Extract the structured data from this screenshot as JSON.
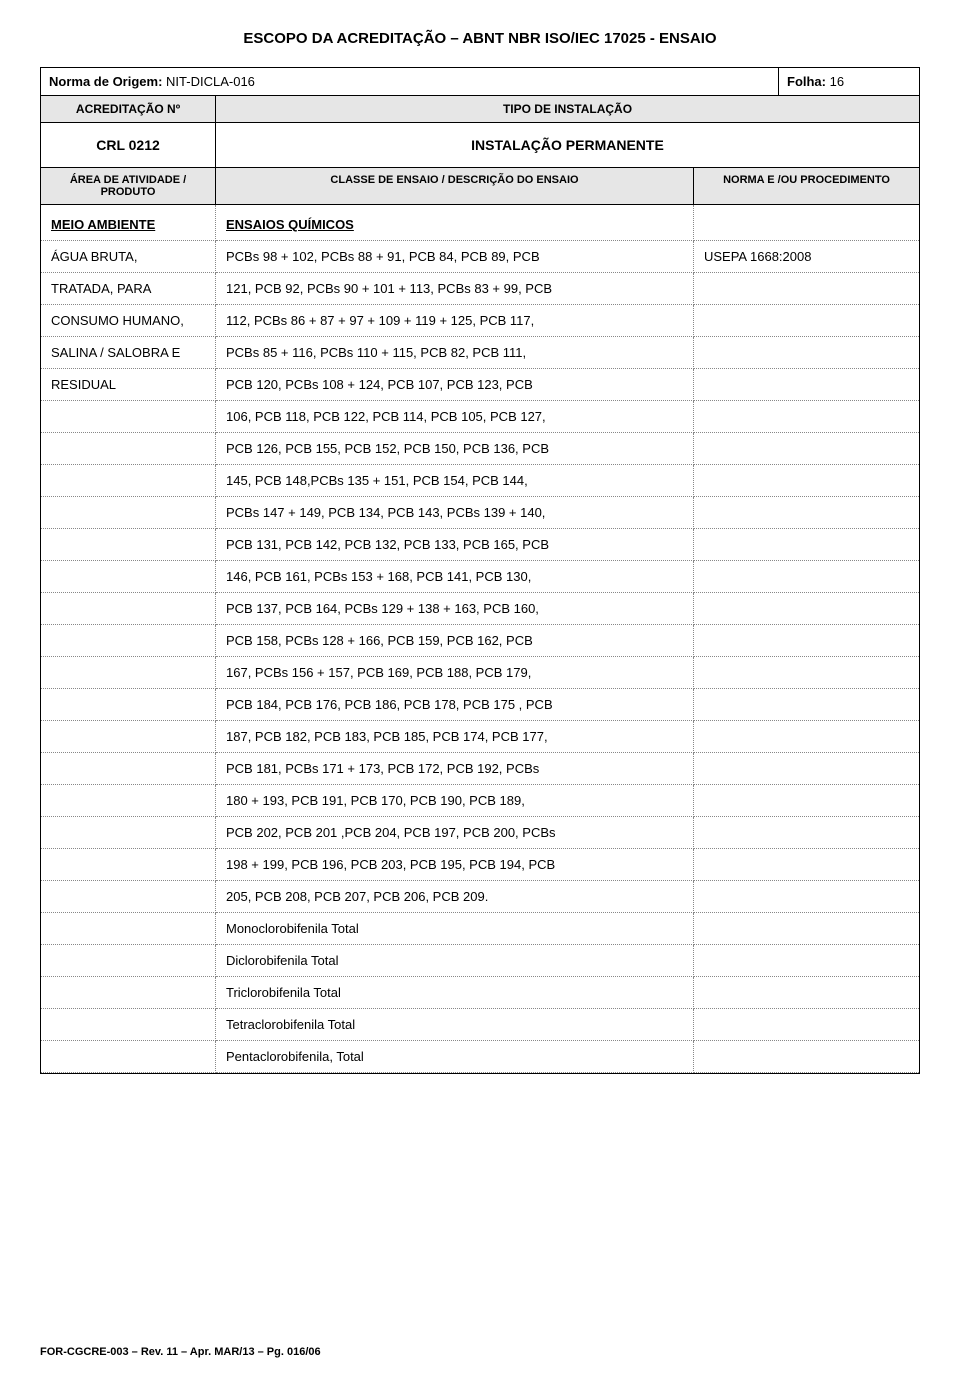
{
  "page_title": "ESCOPO DA ACREDITAÇÃO – ABNT NBR ISO/IEC 17025 - ENSAIO",
  "norma_label": "Norma de Origem:",
  "norma_value": "NIT-DICLA-016",
  "folha_label": "Folha:",
  "folha_value": "16",
  "header": {
    "acred_label": "ACREDITAÇÃO Nº",
    "tipo_label": "TIPO DE INSTALAÇÃO",
    "crl_value": "CRL 0212",
    "instalacao_value": "INSTALAÇÃO PERMANENTE",
    "area_label": "ÁREA DE ATIVIDADE / PRODUTO",
    "classe_label": "CLASSE DE ENSAIO / DESCRIÇÃO DO ENSAIO",
    "norma_proc_label": "NORMA E /OU PROCEDIMENTO"
  },
  "rows": [
    {
      "c1": "MEIO AMBIENTE",
      "c1_style": "bold-underline",
      "c2": "ENSAIOS QUÍMICOS",
      "c2_style": "bold-underline",
      "c3": ""
    },
    {
      "c1": "ÁGUA BRUTA,",
      "c2": "PCBs 98 + 102, PCBs 88 + 91, PCB 84, PCB 89, PCB",
      "c3": "USEPA 1668:2008"
    },
    {
      "c1": "TRATADA, PARA",
      "c2": "121, PCB 92, PCBs 90 + 101 + 113, PCBs 83 + 99, PCB",
      "c3": ""
    },
    {
      "c1": "CONSUMO HUMANO,",
      "c2": "112, PCBs 86 + 87 + 97 + 109 + 119 + 125, PCB 117,",
      "c3": ""
    },
    {
      "c1": "SALINA / SALOBRA E",
      "c2": "PCBs 85 + 116, PCBs 110 + 115, PCB 82, PCB 111,",
      "c3": ""
    },
    {
      "c1": "RESIDUAL",
      "c2": "PCB 120, PCBs 108 + 124, PCB 107, PCB 123, PCB",
      "c3": ""
    },
    {
      "c1": "",
      "c2": "106, PCB 118, PCB 122, PCB 114, PCB 105, PCB 127,",
      "c3": ""
    },
    {
      "c1": "",
      "c2": "PCB 126, PCB 155, PCB 152, PCB 150, PCB 136, PCB",
      "c3": ""
    },
    {
      "c1": "",
      "c2": "145, PCB 148,PCBs 135 + 151, PCB 154, PCB 144,",
      "c3": ""
    },
    {
      "c1": "",
      "c2": "PCBs 147 + 149, PCB 134, PCB 143, PCBs 139 + 140,",
      "c3": ""
    },
    {
      "c1": "",
      "c2": "PCB 131, PCB 142, PCB 132, PCB 133, PCB 165, PCB",
      "c3": ""
    },
    {
      "c1": "",
      "c2": "146, PCB 161, PCBs 153 + 168, PCB 141, PCB 130,",
      "c3": ""
    },
    {
      "c1": "",
      "c2": "PCB 137, PCB 164, PCBs 129 + 138 + 163, PCB 160,",
      "c3": ""
    },
    {
      "c1": "",
      "c2": "PCB 158, PCBs 128 + 166, PCB 159, PCB 162, PCB",
      "c3": ""
    },
    {
      "c1": "",
      "c2": "167, PCBs 156 + 157, PCB 169, PCB 188, PCB 179,",
      "c3": ""
    },
    {
      "c1": "",
      "c2": "PCB 184, PCB 176, PCB 186, PCB 178, PCB 175 , PCB",
      "c3": ""
    },
    {
      "c1": "",
      "c2": "187, PCB 182, PCB 183, PCB 185, PCB 174, PCB 177,",
      "c3": ""
    },
    {
      "c1": "",
      "c2": "PCB 181, PCBs 171 + 173, PCB 172, PCB 192, PCBs",
      "c3": ""
    },
    {
      "c1": "",
      "c2": "180 + 193, PCB 191, PCB 170, PCB 190, PCB 189,",
      "c3": ""
    },
    {
      "c1": "",
      "c2": "PCB 202, PCB 201 ,PCB 204, PCB 197, PCB 200, PCBs",
      "c3": ""
    },
    {
      "c1": "",
      "c2": "198 + 199, PCB 196, PCB 203, PCB 195, PCB 194, PCB",
      "c3": ""
    },
    {
      "c1": "",
      "c2": "205, PCB 208, PCB 207, PCB 206, PCB 209.",
      "c3": ""
    },
    {
      "c1": "",
      "c2": "Monoclorobifenila Total",
      "c3": ""
    },
    {
      "c1": "",
      "c2": "Diclorobifenila Total",
      "c3": ""
    },
    {
      "c1": "",
      "c2": "Triclorobifenila Total",
      "c3": ""
    },
    {
      "c1": "",
      "c2": "Tetraclorobifenila Total",
      "c3": ""
    },
    {
      "c1": "",
      "c2": "Pentaclorobifenila, Total",
      "c3": ""
    }
  ],
  "footer": "FOR-CGCRE-003 – Rev. 11 – Apr. MAR/13 – Pg. 016/06",
  "colors": {
    "bg": "#ffffff",
    "header_bg": "#e6e6e6",
    "text": "#000000",
    "border": "#000000",
    "dotted_border": "#888888"
  },
  "fonts": {
    "family": "Arial",
    "title_size": 15,
    "body_size": 13,
    "subhead_size": 11,
    "footer_size": 11
  }
}
